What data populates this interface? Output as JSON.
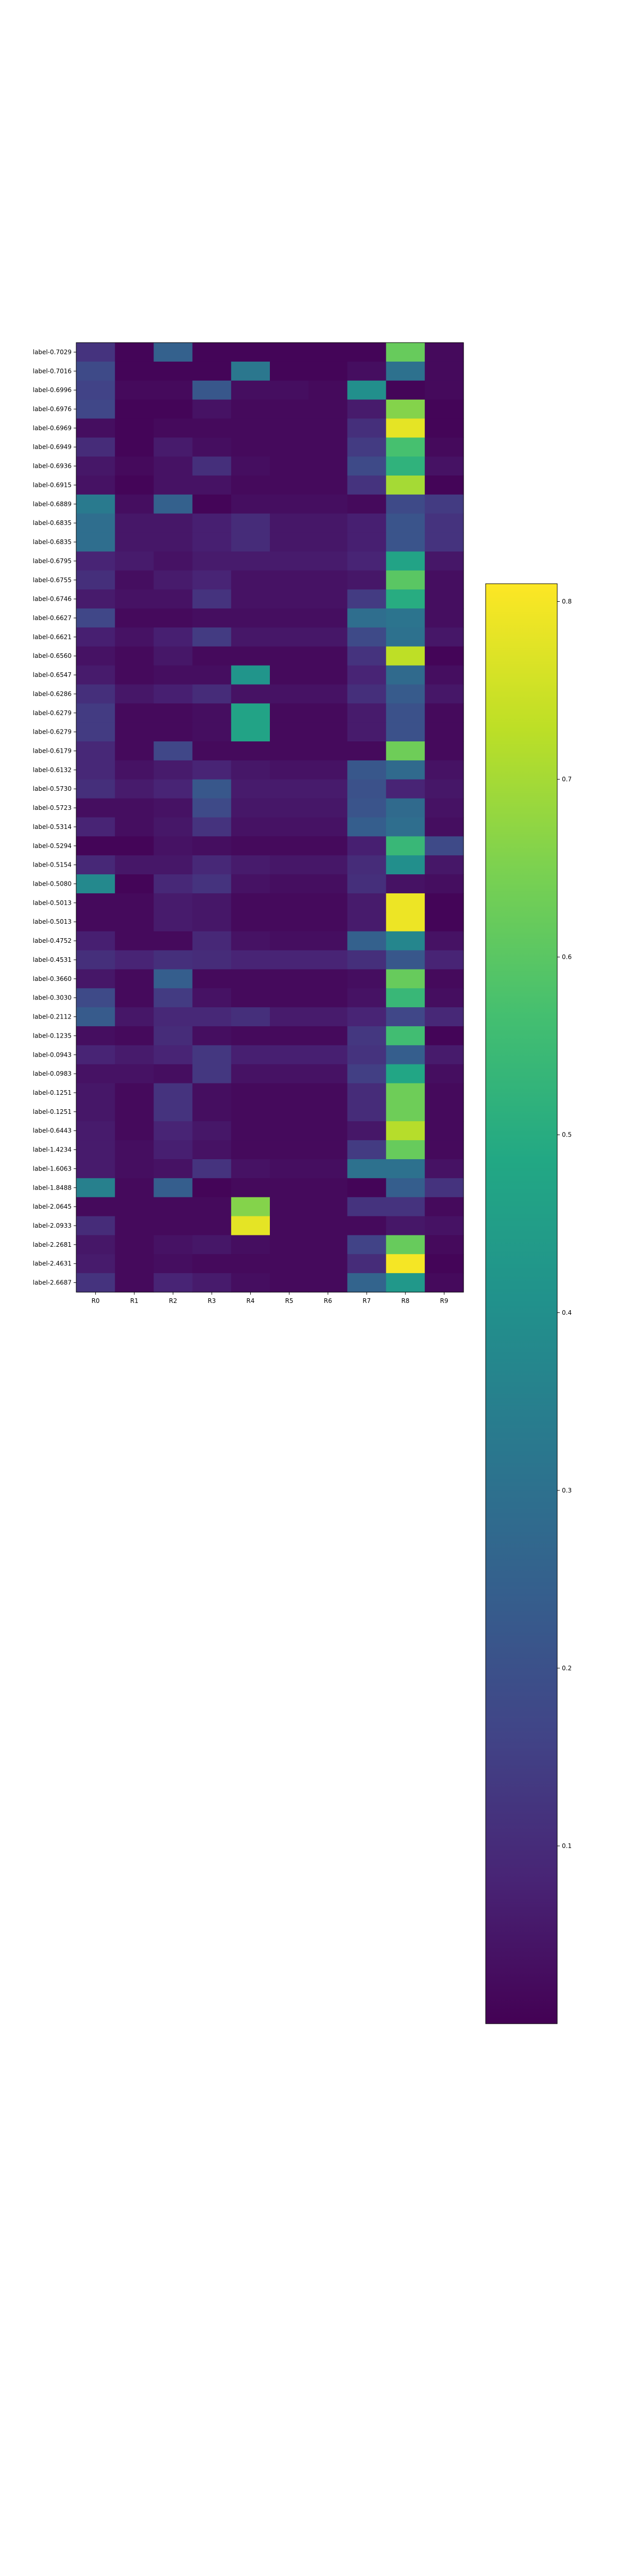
{
  "chart_data": {
    "type": "heatmap",
    "colormap": "viridis",
    "columns": [
      "R0",
      "R1",
      "R2",
      "R3",
      "R4",
      "R5",
      "R6",
      "R7",
      "R8",
      "R9"
    ],
    "rows": [
      {
        "label": "label-0.7029",
        "values": [
          0.12,
          0.01,
          0.25,
          0.01,
          0.01,
          0.01,
          0.01,
          0.01,
          0.62,
          0.02
        ]
      },
      {
        "label": "label-0.7016",
        "values": [
          0.18,
          0.01,
          0.01,
          0.01,
          0.32,
          0.01,
          0.01,
          0.03,
          0.3,
          0.02
        ]
      },
      {
        "label": "label-0.6996",
        "values": [
          0.16,
          0.02,
          0.02,
          0.22,
          0.03,
          0.03,
          0.02,
          0.4,
          0.01,
          0.02
        ]
      },
      {
        "label": "label-0.6976",
        "values": [
          0.17,
          0.01,
          0.01,
          0.04,
          0.02,
          0.02,
          0.02,
          0.06,
          0.66,
          0.01
        ]
      },
      {
        "label": "label-0.6969",
        "values": [
          0.03,
          0.01,
          0.02,
          0.02,
          0.02,
          0.02,
          0.02,
          0.11,
          0.78,
          0.01
        ]
      },
      {
        "label": "label-0.6949",
        "values": [
          0.1,
          0.01,
          0.06,
          0.03,
          0.02,
          0.02,
          0.02,
          0.14,
          0.57,
          0.02
        ]
      },
      {
        "label": "label-0.6936",
        "values": [
          0.05,
          0.02,
          0.04,
          0.11,
          0.03,
          0.02,
          0.02,
          0.18,
          0.52,
          0.04
        ]
      },
      {
        "label": "label-0.6915",
        "values": [
          0.04,
          0.01,
          0.04,
          0.04,
          0.02,
          0.02,
          0.02,
          0.12,
          0.7,
          0.01
        ]
      },
      {
        "label": "label-0.6889",
        "values": [
          0.33,
          0.03,
          0.25,
          0.01,
          0.03,
          0.03,
          0.03,
          0.02,
          0.18,
          0.14
        ]
      },
      {
        "label": "label-0.6835",
        "values": [
          0.29,
          0.05,
          0.05,
          0.07,
          0.1,
          0.05,
          0.05,
          0.07,
          0.21,
          0.12
        ]
      },
      {
        "label": "label-0.6835",
        "values": [
          0.29,
          0.05,
          0.05,
          0.07,
          0.1,
          0.05,
          0.05,
          0.07,
          0.21,
          0.12
        ]
      },
      {
        "label": "label-0.6795",
        "values": [
          0.08,
          0.06,
          0.04,
          0.06,
          0.06,
          0.06,
          0.06,
          0.08,
          0.47,
          0.05
        ]
      },
      {
        "label": "label-0.6755",
        "values": [
          0.11,
          0.03,
          0.06,
          0.08,
          0.04,
          0.04,
          0.04,
          0.05,
          0.6,
          0.03
        ]
      },
      {
        "label": "label-0.6746",
        "values": [
          0.06,
          0.04,
          0.04,
          0.12,
          0.04,
          0.04,
          0.04,
          0.14,
          0.5,
          0.03
        ]
      },
      {
        "label": "label-0.6627",
        "values": [
          0.17,
          0.02,
          0.02,
          0.03,
          0.03,
          0.03,
          0.03,
          0.29,
          0.31,
          0.03
        ]
      },
      {
        "label": "label-0.6621",
        "values": [
          0.07,
          0.04,
          0.07,
          0.14,
          0.05,
          0.05,
          0.05,
          0.18,
          0.3,
          0.05
        ]
      },
      {
        "label": "label-0.6560",
        "values": [
          0.04,
          0.02,
          0.05,
          0.02,
          0.02,
          0.02,
          0.02,
          0.12,
          0.73,
          0.01
        ]
      },
      {
        "label": "label-0.6547",
        "values": [
          0.06,
          0.02,
          0.03,
          0.03,
          0.42,
          0.02,
          0.02,
          0.08,
          0.28,
          0.03
        ]
      },
      {
        "label": "label-0.6286",
        "values": [
          0.11,
          0.05,
          0.07,
          0.1,
          0.04,
          0.04,
          0.04,
          0.11,
          0.23,
          0.05
        ]
      },
      {
        "label": "label-0.6279",
        "values": [
          0.14,
          0.02,
          0.02,
          0.03,
          0.47,
          0.02,
          0.02,
          0.06,
          0.2,
          0.02
        ]
      },
      {
        "label": "label-0.6279",
        "values": [
          0.14,
          0.02,
          0.02,
          0.03,
          0.47,
          0.02,
          0.02,
          0.06,
          0.2,
          0.02
        ]
      },
      {
        "label": "label-0.6179",
        "values": [
          0.09,
          0.02,
          0.17,
          0.02,
          0.02,
          0.02,
          0.02,
          0.02,
          0.63,
          0.02
        ]
      },
      {
        "label": "label-0.6132",
        "values": [
          0.09,
          0.04,
          0.06,
          0.08,
          0.05,
          0.04,
          0.04,
          0.22,
          0.28,
          0.04
        ]
      },
      {
        "label": "label-0.5730",
        "values": [
          0.11,
          0.06,
          0.08,
          0.22,
          0.06,
          0.06,
          0.06,
          0.2,
          0.08,
          0.05
        ]
      },
      {
        "label": "label-0.5723",
        "values": [
          0.03,
          0.03,
          0.04,
          0.18,
          0.05,
          0.05,
          0.05,
          0.21,
          0.28,
          0.04
        ]
      },
      {
        "label": "label-0.5314",
        "values": [
          0.08,
          0.03,
          0.05,
          0.12,
          0.04,
          0.04,
          0.04,
          0.24,
          0.29,
          0.03
        ]
      },
      {
        "label": "label-0.5294",
        "values": [
          0.01,
          0.01,
          0.04,
          0.03,
          0.02,
          0.02,
          0.02,
          0.07,
          0.54,
          0.18
        ]
      },
      {
        "label": "label-0.5154",
        "values": [
          0.09,
          0.05,
          0.05,
          0.09,
          0.06,
          0.05,
          0.05,
          0.1,
          0.4,
          0.05
        ]
      },
      {
        "label": "label-0.5080",
        "values": [
          0.38,
          0.01,
          0.09,
          0.12,
          0.04,
          0.03,
          0.03,
          0.11,
          0.04,
          0.03
        ]
      },
      {
        "label": "label-0.5013",
        "values": [
          0.02,
          0.02,
          0.06,
          0.05,
          0.02,
          0.02,
          0.02,
          0.06,
          0.79,
          0.01
        ]
      },
      {
        "label": "label-0.5013",
        "values": [
          0.02,
          0.02,
          0.06,
          0.05,
          0.02,
          0.02,
          0.02,
          0.06,
          0.79,
          0.01
        ]
      },
      {
        "label": "label-0.4752",
        "values": [
          0.07,
          0.02,
          0.02,
          0.09,
          0.04,
          0.03,
          0.03,
          0.25,
          0.37,
          0.04
        ]
      },
      {
        "label": "label-0.4531",
        "values": [
          0.11,
          0.08,
          0.11,
          0.1,
          0.08,
          0.08,
          0.08,
          0.11,
          0.22,
          0.08
        ]
      },
      {
        "label": "label-0.3660",
        "values": [
          0.05,
          0.02,
          0.24,
          0.02,
          0.02,
          0.02,
          0.02,
          0.03,
          0.62,
          0.02
        ]
      },
      {
        "label": "label-0.3030",
        "values": [
          0.18,
          0.02,
          0.14,
          0.04,
          0.02,
          0.02,
          0.02,
          0.04,
          0.54,
          0.03
        ]
      },
      {
        "label": "label-0.2112",
        "values": [
          0.23,
          0.05,
          0.09,
          0.09,
          0.11,
          0.06,
          0.06,
          0.08,
          0.17,
          0.09
        ]
      },
      {
        "label": "label-0.1235",
        "values": [
          0.03,
          0.02,
          0.1,
          0.03,
          0.02,
          0.02,
          0.02,
          0.13,
          0.56,
          0.01
        ]
      },
      {
        "label": "label-0.0943",
        "values": [
          0.08,
          0.06,
          0.08,
          0.13,
          0.07,
          0.07,
          0.07,
          0.12,
          0.24,
          0.06
        ]
      },
      {
        "label": "label-0.0983",
        "values": [
          0.04,
          0.04,
          0.03,
          0.13,
          0.04,
          0.04,
          0.04,
          0.15,
          0.48,
          0.03
        ]
      },
      {
        "label": "label-0.1251",
        "values": [
          0.05,
          0.02,
          0.12,
          0.03,
          0.02,
          0.02,
          0.02,
          0.1,
          0.63,
          0.02
        ]
      },
      {
        "label": "label-0.1251",
        "values": [
          0.05,
          0.02,
          0.12,
          0.03,
          0.02,
          0.02,
          0.02,
          0.1,
          0.63,
          0.02
        ]
      },
      {
        "label": "label-0.6443",
        "values": [
          0.06,
          0.02,
          0.08,
          0.05,
          0.02,
          0.02,
          0.02,
          0.05,
          0.72,
          0.02
        ]
      },
      {
        "label": "label-1.4234",
        "values": [
          0.06,
          0.03,
          0.07,
          0.04,
          0.02,
          0.02,
          0.02,
          0.14,
          0.62,
          0.02
        ]
      },
      {
        "label": "label-1.6063",
        "values": [
          0.06,
          0.03,
          0.04,
          0.12,
          0.04,
          0.03,
          0.03,
          0.3,
          0.3,
          0.04
        ]
      },
      {
        "label": "label-1.8488",
        "values": [
          0.35,
          0.02,
          0.24,
          0.01,
          0.02,
          0.02,
          0.02,
          0.01,
          0.24,
          0.12
        ]
      },
      {
        "label": "label-2.0645",
        "values": [
          0.02,
          0.02,
          0.02,
          0.02,
          0.66,
          0.02,
          0.02,
          0.12,
          0.12,
          0.02
        ]
      },
      {
        "label": "label-2.0933",
        "values": [
          0.1,
          0.02,
          0.02,
          0.02,
          0.78,
          0.02,
          0.02,
          0.02,
          0.05,
          0.04
        ]
      },
      {
        "label": "label-2.2681",
        "values": [
          0.05,
          0.02,
          0.04,
          0.05,
          0.03,
          0.02,
          0.02,
          0.16,
          0.62,
          0.02
        ]
      },
      {
        "label": "label-2.4631",
        "values": [
          0.06,
          0.02,
          0.03,
          0.02,
          0.02,
          0.02,
          0.02,
          0.1,
          0.8,
          0.01
        ]
      },
      {
        "label": "label-2.6687",
        "values": [
          0.12,
          0.02,
          0.08,
          0.06,
          0.03,
          0.02,
          0.02,
          0.26,
          0.43,
          0.02
        ]
      }
    ],
    "vmin": 0.0,
    "vmax": 0.81,
    "colorbar_ticks": [
      "0.1",
      "0.2",
      "0.3",
      "0.4",
      "0.5",
      "0.6",
      "0.7",
      "0.8"
    ],
    "colorbar_tick_values": [
      0.1,
      0.2,
      0.3,
      0.4,
      0.5,
      0.6,
      0.7,
      0.8
    ]
  }
}
